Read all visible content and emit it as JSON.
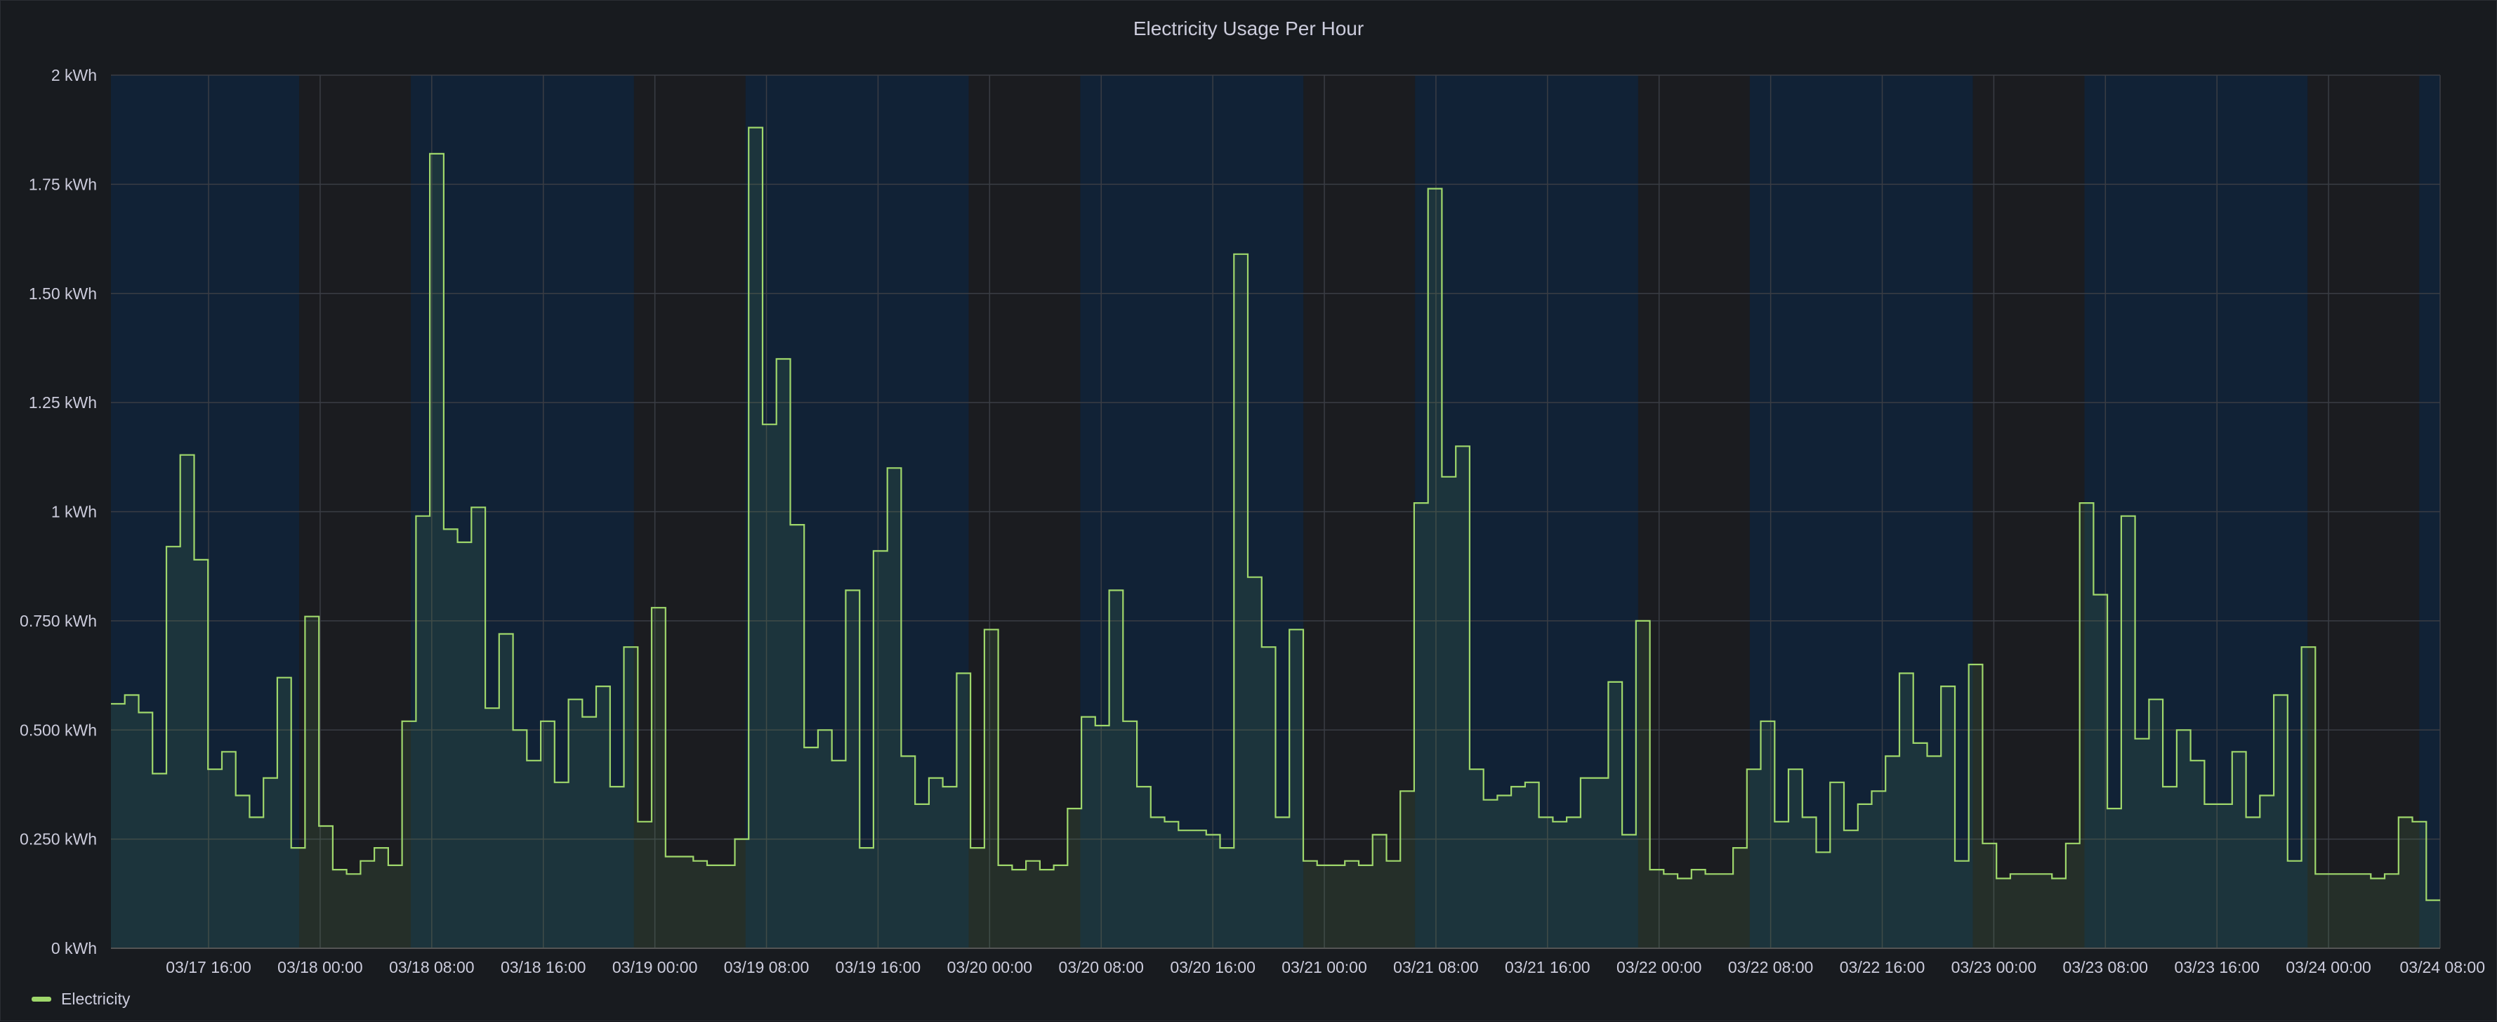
{
  "panel": {
    "title": "Electricity Usage Per Hour"
  },
  "colors": {
    "background": "#181b1f",
    "day_band": "#112236",
    "night_band": "#1b1c20",
    "grid": "#3a3d44",
    "axis_text": "#ccccdc",
    "series_line": "#9fd76b",
    "series_fill": "rgba(115,191,105,0.12)"
  },
  "chart_data": {
    "type": "line",
    "interpolation": "step-after",
    "title": "Electricity Usage Per Hour",
    "x_unit": "hour",
    "x_start": "03/17 09:00",
    "x_end": "03/24 08:00",
    "x_tick_labels": [
      "03/17 16:00",
      "03/18 00:00",
      "03/18 08:00",
      "03/18 16:00",
      "03/19 00:00",
      "03/19 08:00",
      "03/19 16:00",
      "03/20 00:00",
      "03/20 08:00",
      "03/20 16:00",
      "03/21 00:00",
      "03/21 08:00",
      "03/21 16:00",
      "03/22 00:00",
      "03/22 08:00",
      "03/22 16:00",
      "03/23 00:00",
      "03/23 08:00",
      "03/23 16:00",
      "03/24 00:00",
      "03/24 08:00"
    ],
    "y_tick_labels": [
      "0 kWh",
      "0.250 kWh",
      "0.500 kWh",
      "0.750 kWh",
      "1 kWh",
      "1.25 kWh",
      "1.50 kWh",
      "1.75 kWh",
      "2 kWh"
    ],
    "ylim": [
      0,
      2
    ],
    "grid": true,
    "legend_position": "bottom-left",
    "background_bands": [
      {
        "kind": "day",
        "from": "03/17 09:00",
        "to": "03/17 22:30"
      },
      {
        "kind": "night",
        "from": "03/17 22:30",
        "to": "03/18 06:30"
      },
      {
        "kind": "day",
        "from": "03/18 06:30",
        "to": "03/18 22:30"
      },
      {
        "kind": "night",
        "from": "03/18 22:30",
        "to": "03/19 06:30"
      },
      {
        "kind": "day",
        "from": "03/19 06:30",
        "to": "03/19 22:30"
      },
      {
        "kind": "night",
        "from": "03/19 22:30",
        "to": "03/20 06:30"
      },
      {
        "kind": "day",
        "from": "03/20 06:30",
        "to": "03/20 22:30"
      },
      {
        "kind": "night",
        "from": "03/20 22:30",
        "to": "03/21 06:30"
      },
      {
        "kind": "day",
        "from": "03/21 06:30",
        "to": "03/21 22:30"
      },
      {
        "kind": "night",
        "from": "03/21 22:30",
        "to": "03/22 06:30"
      },
      {
        "kind": "day",
        "from": "03/22 06:30",
        "to": "03/22 22:30"
      },
      {
        "kind": "night",
        "from": "03/22 22:30",
        "to": "03/23 06:30"
      },
      {
        "kind": "day",
        "from": "03/23 06:30",
        "to": "03/23 22:30"
      },
      {
        "kind": "night",
        "from": "03/23 22:30",
        "to": "03/24 06:30"
      },
      {
        "kind": "day",
        "from": "03/24 06:30",
        "to": "03/24 08:00"
      }
    ],
    "series": [
      {
        "name": "Electricity",
        "color": "#9fd76b",
        "values": [
          0.56,
          0.58,
          0.54,
          0.4,
          0.92,
          1.13,
          0.89,
          0.41,
          0.45,
          0.35,
          0.3,
          0.39,
          0.62,
          0.23,
          0.76,
          0.28,
          0.18,
          0.17,
          0.2,
          0.23,
          0.19,
          0.52,
          0.99,
          1.82,
          0.96,
          0.93,
          1.01,
          0.55,
          0.72,
          0.5,
          0.43,
          0.52,
          0.38,
          0.57,
          0.53,
          0.6,
          0.37,
          0.69,
          0.29,
          0.78,
          0.21,
          0.21,
          0.2,
          0.19,
          0.19,
          0.25,
          1.88,
          1.2,
          1.35,
          0.97,
          0.46,
          0.5,
          0.43,
          0.82,
          0.23,
          0.91,
          1.1,
          0.44,
          0.33,
          0.39,
          0.37,
          0.63,
          0.23,
          0.73,
          0.19,
          0.18,
          0.2,
          0.18,
          0.19,
          0.32,
          0.53,
          0.51,
          0.82,
          0.52,
          0.37,
          0.3,
          0.29,
          0.27,
          0.27,
          0.26,
          0.23,
          1.59,
          0.85,
          0.69,
          0.3,
          0.73,
          0.2,
          0.19,
          0.19,
          0.2,
          0.19,
          0.26,
          0.2,
          0.36,
          1.02,
          1.74,
          1.08,
          1.15,
          0.41,
          0.34,
          0.35,
          0.37,
          0.38,
          0.3,
          0.29,
          0.3,
          0.39,
          0.39,
          0.61,
          0.26,
          0.75,
          0.18,
          0.17,
          0.16,
          0.18,
          0.17,
          0.17,
          0.23,
          0.41,
          0.52,
          0.29,
          0.41,
          0.3,
          0.22,
          0.38,
          0.27,
          0.33,
          0.36,
          0.44,
          0.63,
          0.47,
          0.44,
          0.6,
          0.2,
          0.65,
          0.24,
          0.16,
          0.17,
          0.17,
          0.17,
          0.16,
          0.24,
          1.02,
          0.81,
          0.32,
          0.99,
          0.48,
          0.57,
          0.37,
          0.5,
          0.43,
          0.33,
          0.33,
          0.45,
          0.3,
          0.35,
          0.58,
          0.2,
          0.69,
          0.17,
          0.17,
          0.17,
          0.17,
          0.16,
          0.17,
          0.3,
          0.29,
          0.11
        ]
      }
    ]
  },
  "legend": {
    "items": [
      {
        "label": "Electricity",
        "color": "#9fd76b"
      }
    ]
  }
}
